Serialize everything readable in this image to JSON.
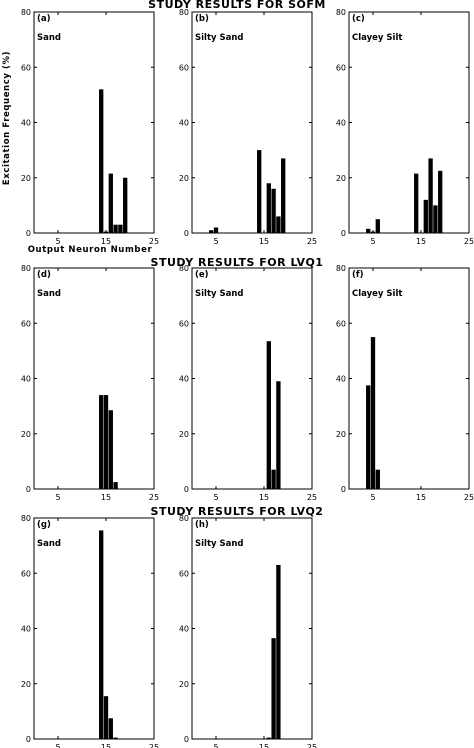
{
  "sections": [
    {
      "title": "STUDY RESULTS FOR SOFM"
    },
    {
      "title": "STUDY RESULTS FOR LVQ1"
    },
    {
      "title": "STUDY RESULTS FOR LVQ2"
    }
  ],
  "ylabel": "Excitation Frequency (%)",
  "xlabel": "Output Neuron Number",
  "chart_data": [
    {
      "type": "bar",
      "section": 0,
      "col": 0,
      "tag": "(a)",
      "soil": "Sand",
      "xlim": [
        0,
        25
      ],
      "ylim": [
        0,
        80
      ],
      "xticks": [
        5,
        15,
        25
      ],
      "yticks": [
        0,
        20,
        40,
        60,
        80
      ],
      "x": [
        14,
        15,
        16,
        17,
        18,
        19
      ],
      "values": [
        52,
        0.5,
        21.5,
        3,
        3,
        20
      ]
    },
    {
      "type": "bar",
      "section": 0,
      "col": 1,
      "tag": "(b)",
      "soil": "Silty Sand",
      "xlim": [
        0,
        25
      ],
      "ylim": [
        0,
        80
      ],
      "xticks": [
        5,
        15,
        25
      ],
      "yticks": [
        0,
        20,
        40,
        60,
        80
      ],
      "x": [
        4,
        5,
        14,
        16,
        17,
        18,
        19
      ],
      "values": [
        1,
        2,
        30,
        18,
        16,
        6,
        27
      ]
    },
    {
      "type": "bar",
      "section": 0,
      "col": 2,
      "tag": "(c)",
      "soil": "Clayey Silt",
      "xlim": [
        0,
        25
      ],
      "ylim": [
        0,
        80
      ],
      "xticks": [
        5,
        15,
        25
      ],
      "yticks": [
        0,
        20,
        40,
        60,
        80
      ],
      "x": [
        4,
        5,
        6,
        14,
        16,
        17,
        18,
        19
      ],
      "values": [
        1.5,
        0.5,
        5,
        21.5,
        12,
        27,
        10,
        22.5
      ]
    },
    {
      "type": "bar",
      "section": 1,
      "col": 0,
      "tag": "(d)",
      "soil": "Sand",
      "xlim": [
        0,
        25
      ],
      "ylim": [
        0,
        80
      ],
      "xticks": [
        5,
        15,
        25
      ],
      "yticks": [
        0,
        20,
        40,
        60,
        80
      ],
      "x": [
        14,
        15,
        16,
        17
      ],
      "values": [
        34,
        34,
        28.5,
        2.5
      ]
    },
    {
      "type": "bar",
      "section": 1,
      "col": 1,
      "tag": "(e)",
      "soil": "Silty Sand",
      "xlim": [
        0,
        25
      ],
      "ylim": [
        0,
        80
      ],
      "xticks": [
        5,
        15,
        25
      ],
      "yticks": [
        0,
        20,
        40,
        60,
        80
      ],
      "x": [
        16,
        17,
        18
      ],
      "values": [
        53.5,
        7,
        39
      ]
    },
    {
      "type": "bar",
      "section": 1,
      "col": 2,
      "tag": "(f)",
      "soil": "Clayey Silt",
      "xlim": [
        0,
        25
      ],
      "ylim": [
        0,
        80
      ],
      "xticks": [
        5,
        15,
        25
      ],
      "yticks": [
        0,
        20,
        40,
        60,
        80
      ],
      "x": [
        4,
        5,
        6
      ],
      "values": [
        37.5,
        55,
        7
      ]
    },
    {
      "type": "bar",
      "section": 2,
      "col": 0,
      "tag": "(g)",
      "soil": "Sand",
      "xlim": [
        0,
        25
      ],
      "ylim": [
        0,
        80
      ],
      "xticks": [
        5,
        15,
        25
      ],
      "yticks": [
        0,
        20,
        40,
        60,
        80
      ],
      "x": [
        14,
        15,
        16,
        17
      ],
      "values": [
        75.5,
        15.5,
        7.5,
        0.5
      ]
    },
    {
      "type": "bar",
      "section": 2,
      "col": 1,
      "tag": "(h)",
      "soil": "Silty Sand",
      "xlim": [
        0,
        25
      ],
      "ylim": [
        0,
        80
      ],
      "xticks": [
        5,
        15,
        25
      ],
      "yticks": [
        0,
        20,
        40,
        60,
        80
      ],
      "x": [
        16,
        17,
        18
      ],
      "values": [
        0.5,
        36.5,
        63
      ]
    }
  ]
}
